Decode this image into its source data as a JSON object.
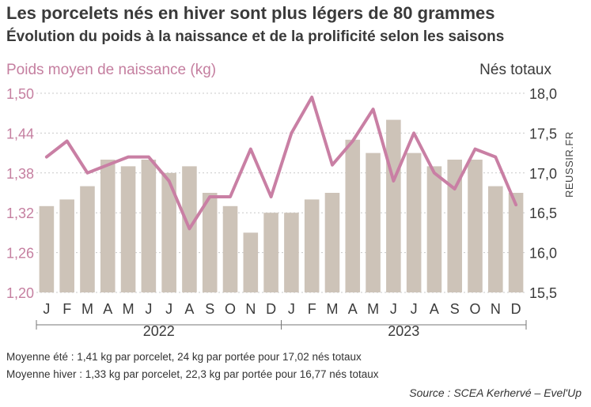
{
  "title": "Les porcelets nés en hiver sont plus légers de 80 grammes",
  "subtitle": "Évolution du poids à la naissance et de la prolificité selon les saisons",
  "notes": [
    "Moyenne été : 1,41 kg par porcelet, 24 kg par portée pour 17,02 nés totaux",
    "Moyenne hiver : 1,33 kg par porcelet, 22,3 kg par portée pour 16,77 nés totaux"
  ],
  "source": "Source : SCEA Kerhervé – Evel'Up",
  "watermark": "REUSSIR.FR",
  "colors": {
    "bars": "#cdc3b8",
    "line": "#c97fa4",
    "left_axis_text": "#c57fa0"
  },
  "chart_data": {
    "type": "bar",
    "categories": [
      "J",
      "F",
      "M",
      "A",
      "M",
      "J",
      "J",
      "A",
      "S",
      "O",
      "N",
      "D",
      "J",
      "F",
      "M",
      "A",
      "M",
      "J",
      "J",
      "A",
      "S",
      "O",
      "N",
      "D"
    ],
    "groups": [
      {
        "label": "2022",
        "months": 12
      },
      {
        "label": "2023",
        "months": 12
      }
    ],
    "ylabel_left": "Poids moyen de naissance (kg)",
    "ylabel_right": "Nés totaux",
    "yticks_left": [
      "1,20",
      "1,26",
      "1,32",
      "1,38",
      "1,44",
      "1,50"
    ],
    "yticks_right": [
      "15,5",
      "16,0",
      "16,5",
      "17,0",
      "17,5",
      "18,0"
    ],
    "ylim_left": [
      1.2,
      1.5
    ],
    "ylim_right": [
      15.5,
      18.0
    ],
    "series": [
      {
        "name": "Poids moyen de naissance (kg)",
        "type": "bar",
        "axis": "left",
        "values": [
          1.33,
          1.34,
          1.36,
          1.4,
          1.39,
          1.4,
          1.38,
          1.39,
          1.35,
          1.33,
          1.29,
          1.32,
          1.32,
          1.34,
          1.35,
          1.43,
          1.41,
          1.46,
          1.41,
          1.39,
          1.4,
          1.4,
          1.36,
          1.35
        ]
      },
      {
        "name": "Nés totaux",
        "type": "line",
        "axis": "right",
        "values": [
          17.2,
          17.4,
          17.0,
          17.1,
          17.2,
          17.2,
          16.9,
          16.3,
          16.7,
          16.7,
          17.3,
          16.7,
          17.5,
          17.95,
          17.1,
          17.4,
          17.8,
          16.9,
          17.5,
          17.0,
          16.8,
          17.3,
          17.2,
          16.6
        ]
      }
    ],
    "grid": true
  }
}
